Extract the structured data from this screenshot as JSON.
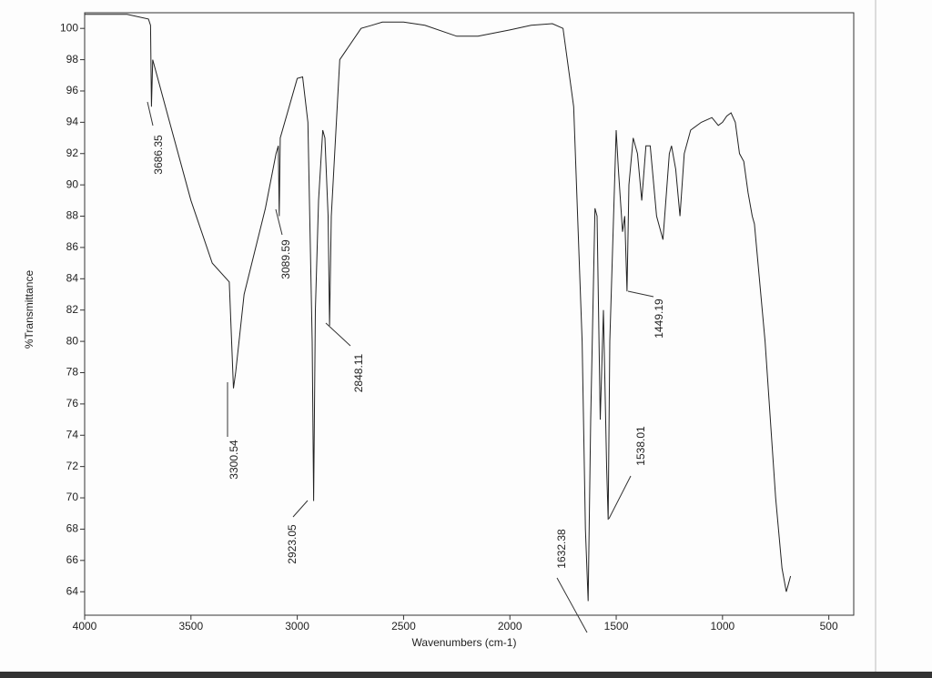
{
  "chart_data": {
    "type": "line",
    "xlabel": "Wavenumbers (cm-1)",
    "ylabel": "%Transmittance",
    "xlim": [
      4000,
      400
    ],
    "ylim": [
      62.5,
      101
    ],
    "xticks": [
      4000,
      3500,
      3000,
      2500,
      2000,
      1500,
      1000,
      500
    ],
    "yticks": [
      64,
      66,
      68,
      70,
      72,
      74,
      76,
      78,
      80,
      82,
      84,
      86,
      88,
      90,
      92,
      94,
      96,
      98,
      100
    ],
    "x": [
      4000,
      3800,
      3700,
      3690,
      3686,
      3680,
      3600,
      3500,
      3400,
      3320,
      3300,
      3290,
      3250,
      3150,
      3100,
      3089,
      3085,
      3080,
      3000,
      2975,
      2950,
      2930,
      2923,
      2915,
      2900,
      2880,
      2870,
      2855,
      2848,
      2840,
      2800,
      2700,
      2650,
      2600,
      2500,
      2400,
      2250,
      2150,
      2000,
      1900,
      1800,
      1750,
      1700,
      1660,
      1645,
      1632,
      1620,
      1600,
      1590,
      1575,
      1560,
      1545,
      1538,
      1530,
      1500,
      1490,
      1470,
      1460,
      1449,
      1440,
      1420,
      1400,
      1380,
      1360,
      1340,
      1310,
      1280,
      1250,
      1240,
      1220,
      1200,
      1180,
      1150,
      1100,
      1050,
      1020,
      1000,
      980,
      960,
      940,
      920,
      900,
      880,
      860,
      850,
      800,
      750,
      720,
      700,
      690,
      680
    ],
    "series": [
      {
        "name": "spectrum",
        "color": "#222222",
        "values": [
          100.9,
          100.9,
          100.6,
          100.2,
          95,
          98,
          94,
          89,
          85,
          83.8,
          77,
          78,
          83,
          88.5,
          92,
          92.5,
          88,
          93,
          96.8,
          96.9,
          94,
          80,
          69.8,
          82,
          89,
          93.5,
          93,
          88,
          81,
          88,
          98,
          100,
          100.2,
          100.4,
          100.4,
          100.2,
          99.5,
          99.5,
          99.9,
          100.2,
          100.3,
          100,
          95,
          80,
          68,
          63.4,
          75,
          88.5,
          88,
          75,
          82,
          72,
          68.6,
          80,
          93.5,
          91,
          87,
          88,
          83.2,
          90,
          93,
          92,
          89,
          92.5,
          92.5,
          88,
          86.5,
          92,
          92.5,
          91,
          88,
          92,
          93.5,
          94,
          94.3,
          93.8,
          94,
          94.4,
          94.6,
          94,
          92,
          91.5,
          89.5,
          88,
          87.5,
          80,
          70,
          65.5,
          64,
          64.5,
          65
        ]
      }
    ],
    "annotations": [
      "3686.35",
      "3300.54",
      "3089.59",
      "2923.05",
      "2848.11",
      "1632.38",
      "1538.01",
      "1449.19"
    ]
  }
}
